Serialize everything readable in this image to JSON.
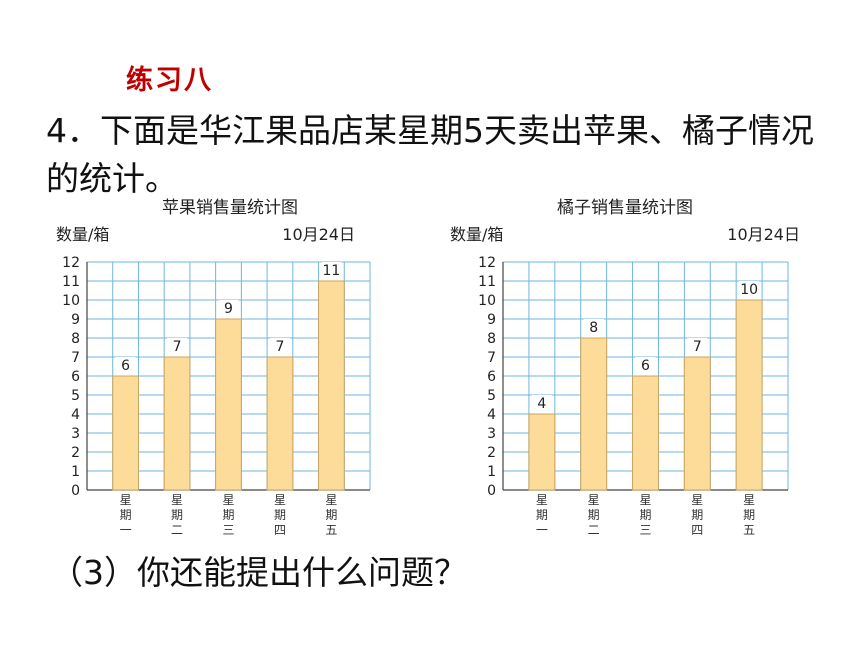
{
  "header": {
    "section_title": "练习八"
  },
  "problem": {
    "text": "4．下面是华江果品店某星期5天卖出苹果、橘子情况的统计。"
  },
  "question": {
    "text": "（3）你还能提出什么问题？"
  },
  "colors": {
    "bar_fill": "#fddc9a",
    "bar_stroke": "#c9a560",
    "grid": "#6fb7dd",
    "axis": "#444444"
  },
  "chart_data": [
    {
      "type": "bar",
      "title": "苹果销售量统计图",
      "ylabel": "数量/箱",
      "date": "10月24日",
      "categories": [
        "星期一",
        "星期二",
        "星期三",
        "星期四",
        "星期五"
      ],
      "values": [
        6,
        7,
        9,
        7,
        11
      ],
      "ylim": [
        0,
        12
      ],
      "yticks": [
        "0",
        "1",
        "2",
        "3",
        "4",
        "5",
        "6",
        "7",
        "8",
        "9",
        "10",
        "11",
        "12"
      ],
      "grid": true
    },
    {
      "type": "bar",
      "title": "橘子销售量统计图",
      "ylabel": "数量/箱",
      "date": "10月24日",
      "categories": [
        "星期一",
        "星期二",
        "星期三",
        "星期四",
        "星期五"
      ],
      "values": [
        4,
        8,
        6,
        7,
        10
      ],
      "ylim": [
        0,
        12
      ],
      "yticks": [
        "0",
        "1",
        "2",
        "3",
        "4",
        "5",
        "6",
        "7",
        "8",
        "9",
        "10",
        "11",
        "12"
      ],
      "grid": true
    }
  ]
}
